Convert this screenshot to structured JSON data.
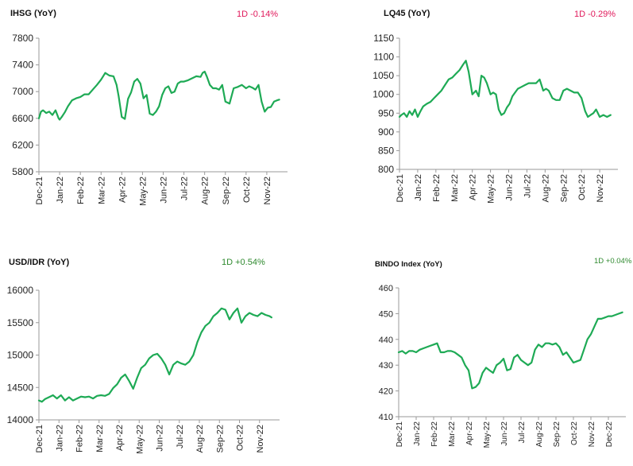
{
  "colors": {
    "line": "#1eaa55",
    "negative": "#e0185a",
    "positive": "#2f8a2f",
    "axis": "#9a9a9a"
  },
  "panels": [
    {
      "title": "IHSG (YoY)",
      "change": "1D -0.14%",
      "change_sign": "negative"
    },
    {
      "title": "LQ45 (YoY)",
      "change": "1D -0.29%",
      "change_sign": "negative"
    },
    {
      "title": "USD/IDR  (YoY)",
      "change": "1D +0.54%",
      "change_sign": "positive"
    },
    {
      "title": "BINDO Index (YoY)",
      "change": "1D +0.04%",
      "change_sign": "positive"
    }
  ],
  "chart_data": [
    {
      "type": "line",
      "title": "IHSG (YoY)",
      "ylim": [
        5800,
        7800
      ],
      "yticks": [
        "7800",
        "7400",
        "7000",
        "6600",
        "6200",
        "5800"
      ],
      "xticks": [
        "Dec-21",
        "Jan-22",
        "Feb-22",
        "Mar-22",
        "Apr-22",
        "May-22",
        "Jun-22",
        "Jul-22",
        "Aug-22",
        "Sep-22",
        "Oct-22",
        "Nov-22"
      ],
      "xlim": [
        0,
        12
      ],
      "series": [
        {
          "x": [
            0,
            0.1,
            0.2,
            0.35,
            0.5,
            0.65,
            0.8,
            0.95,
            1.0,
            1.1,
            1.25,
            1.4,
            1.6,
            1.8,
            2.0,
            2.2,
            2.4,
            2.6,
            2.8,
            3.0,
            3.2,
            3.4,
            3.6,
            3.75,
            3.85,
            4.0,
            4.15,
            4.3,
            4.45,
            4.6,
            4.75,
            4.9,
            5.05,
            5.2,
            5.35,
            5.5,
            5.65,
            5.8,
            5.95,
            6.1,
            6.25,
            6.4,
            6.55,
            6.7,
            6.85,
            7.0,
            7.2,
            7.4,
            7.6,
            7.8,
            7.9,
            8.0,
            8.1,
            8.25,
            8.4,
            8.55,
            8.7,
            8.85,
            9.0,
            9.2,
            9.4,
            9.6,
            9.8,
            10.0,
            10.15,
            10.3,
            10.45,
            10.6,
            10.75,
            10.9,
            11.05,
            11.2,
            11.35,
            11.5,
            11.6
          ],
          "y": [
            6600,
            6700,
            6720,
            6680,
            6700,
            6650,
            6720,
            6600,
            6580,
            6620,
            6690,
            6780,
            6870,
            6900,
            6920,
            6960,
            6960,
            7030,
            7100,
            7180,
            7280,
            7240,
            7230,
            7100,
            6930,
            6620,
            6590,
            6890,
            6990,
            7150,
            7190,
            7120,
            6900,
            6950,
            6670,
            6650,
            6700,
            6780,
            6950,
            7050,
            7080,
            6980,
            7000,
            7120,
            7150,
            7150,
            7170,
            7200,
            7230,
            7220,
            7280,
            7300,
            7230,
            7100,
            7050,
            7050,
            7030,
            7100,
            6850,
            6820,
            7050,
            7070,
            7100,
            7050,
            7080,
            7060,
            7030,
            7100,
            6850,
            6700,
            6760,
            6770,
            6850,
            6870,
            6880
          ]
        }
      ]
    },
    {
      "type": "line",
      "title": "LQ45 (YoY)",
      "ylim": [
        800,
        1150
      ],
      "yticks": [
        "1150",
        "1100",
        "1050",
        "1000",
        "950",
        "900",
        "850",
        "800"
      ],
      "xticks": [
        "Dec-21",
        "Jan-22",
        "Feb-22",
        "Mar-22",
        "Apr-22",
        "May-22",
        "Jun-22",
        "Jul-22",
        "Aug-22",
        "Sep-22",
        "Oct-22",
        "Nov-22"
      ],
      "xlim": [
        0,
        12
      ],
      "series": [
        {
          "x": [
            0,
            0.1,
            0.25,
            0.4,
            0.55,
            0.7,
            0.85,
            1.0,
            1.15,
            1.3,
            1.5,
            1.7,
            1.9,
            2.1,
            2.3,
            2.5,
            2.7,
            2.9,
            3.1,
            3.3,
            3.5,
            3.65,
            3.8,
            4.0,
            4.2,
            4.35,
            4.5,
            4.65,
            4.8,
            5.0,
            5.15,
            5.3,
            5.45,
            5.6,
            5.75,
            5.9,
            6.05,
            6.2,
            6.35,
            6.5,
            6.7,
            6.9,
            7.1,
            7.3,
            7.5,
            7.7,
            7.9,
            8.05,
            8.2,
            8.4,
            8.6,
            8.8,
            9.0,
            9.2,
            9.4,
            9.6,
            9.8,
            10.0,
            10.2,
            10.35,
            10.5,
            10.65,
            10.8,
            11.0,
            11.2,
            11.4,
            11.6
          ],
          "y": [
            940,
            945,
            950,
            940,
            955,
            945,
            960,
            940,
            955,
            968,
            975,
            980,
            990,
            1000,
            1010,
            1025,
            1040,
            1045,
            1055,
            1065,
            1080,
            1090,
            1060,
            1000,
            1010,
            995,
            1050,
            1045,
            1030,
            1000,
            1005,
            1000,
            960,
            945,
            950,
            965,
            975,
            995,
            1005,
            1015,
            1020,
            1025,
            1030,
            1030,
            1030,
            1040,
            1010,
            1015,
            1010,
            990,
            985,
            985,
            1010,
            1015,
            1010,
            1005,
            1005,
            990,
            955,
            940,
            945,
            950,
            960,
            940,
            945,
            940,
            945
          ]
        }
      ]
    },
    {
      "type": "line",
      "title": "USD/IDR  (YoY)",
      "ylim": [
        14000,
        16000
      ],
      "yticks": [
        "16000",
        "15500",
        "15000",
        "14500",
        "14000"
      ],
      "xticks": [
        "Dec-21",
        "Jan-22",
        "Feb-22",
        "Mar-22",
        "Apr-22",
        "May-22",
        "Jun-22",
        "Jul-22",
        "Aug-22",
        "Sep-22",
        "Oct-22",
        "Nov-22"
      ],
      "xlim": [
        0,
        12
      ],
      "series": [
        {
          "x": [
            0,
            0.15,
            0.3,
            0.5,
            0.7,
            0.9,
            1.1,
            1.3,
            1.5,
            1.7,
            1.9,
            2.1,
            2.3,
            2.5,
            2.7,
            2.9,
            3.1,
            3.3,
            3.5,
            3.7,
            3.9,
            4.1,
            4.3,
            4.5,
            4.7,
            4.9,
            5.1,
            5.3,
            5.5,
            5.7,
            5.9,
            6.1,
            6.3,
            6.5,
            6.7,
            6.9,
            7.1,
            7.3,
            7.5,
            7.7,
            7.9,
            8.1,
            8.3,
            8.5,
            8.7,
            8.9,
            9.1,
            9.3,
            9.5,
            9.7,
            9.9,
            10.1,
            10.3,
            10.5,
            10.7,
            10.9,
            11.1,
            11.3,
            11.5,
            11.6
          ],
          "y": [
            14300,
            14280,
            14320,
            14350,
            14380,
            14330,
            14380,
            14300,
            14350,
            14300,
            14330,
            14360,
            14350,
            14360,
            14330,
            14370,
            14380,
            14370,
            14400,
            14490,
            14550,
            14650,
            14700,
            14600,
            14480,
            14650,
            14800,
            14850,
            14950,
            15000,
            15020,
            14950,
            14850,
            14700,
            14850,
            14900,
            14870,
            14850,
            14900,
            15000,
            15200,
            15350,
            15450,
            15500,
            15600,
            15650,
            15720,
            15700,
            15550,
            15650,
            15720,
            15500,
            15600,
            15650,
            15620,
            15600,
            15650,
            15620,
            15600,
            15580
          ]
        }
      ]
    },
    {
      "type": "line",
      "title": "BINDO Index (YoY)",
      "ylim": [
        410,
        460
      ],
      "yticks": [
        "460",
        "450",
        "440",
        "430",
        "420",
        "410"
      ],
      "xticks": [
        "Dec-21",
        "Jan-22",
        "Feb-22",
        "Mar-22",
        "Apr-22",
        "May-22",
        "Jun-22",
        "Jul-22",
        "Aug-22",
        "Sep-22",
        "Oct-22",
        "Nov-22",
        "Dec-22"
      ],
      "xlim": [
        0,
        13
      ],
      "series": [
        {
          "x": [
            0,
            0.2,
            0.4,
            0.6,
            0.8,
            1.0,
            1.2,
            1.4,
            1.6,
            1.8,
            2.0,
            2.2,
            2.4,
            2.6,
            2.8,
            3.0,
            3.2,
            3.4,
            3.6,
            3.8,
            4.0,
            4.2,
            4.4,
            4.6,
            4.8,
            5.0,
            5.2,
            5.4,
            5.6,
            5.8,
            6.0,
            6.2,
            6.4,
            6.6,
            6.8,
            7.0,
            7.2,
            7.4,
            7.6,
            7.8,
            8.0,
            8.2,
            8.4,
            8.6,
            8.8,
            9.0,
            9.2,
            9.4,
            9.6,
            9.8,
            10.0,
            10.2,
            10.4,
            10.6,
            10.8,
            11.0,
            11.2,
            11.4,
            11.6,
            11.8,
            12.0,
            12.2,
            12.4,
            12.6,
            12.8
          ],
          "y": [
            435,
            435.5,
            434.5,
            435.5,
            435.5,
            435,
            436,
            436.5,
            437,
            437.5,
            438,
            438.5,
            435,
            435,
            435.5,
            435.5,
            435,
            434,
            433,
            430,
            428,
            421,
            421.5,
            423,
            427,
            429,
            428,
            427,
            430,
            431,
            432.5,
            428,
            428.5,
            433,
            434,
            432,
            431,
            430,
            431,
            436,
            438,
            437,
            438.5,
            438.5,
            438,
            438.5,
            437,
            434,
            435,
            433,
            431,
            431.5,
            432,
            436,
            440,
            442,
            445,
            448,
            448,
            448.5,
            449,
            449,
            449.5,
            450,
            450.5
          ]
        }
      ]
    }
  ]
}
